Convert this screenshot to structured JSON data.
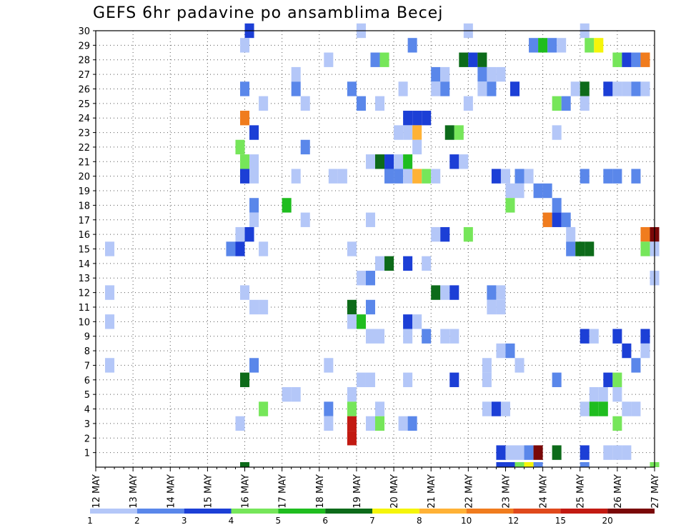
{
  "chart_data": {
    "type": "heatmap",
    "title": "GEFS 6hr padavine po ansamblima Becej",
    "xlabel": "",
    "ylabel": "",
    "x_tick_labels": [
      "12 MAY",
      "13 MAY",
      "14 MAY",
      "15 MAY",
      "16 MAY",
      "17 MAY",
      "18 MAY",
      "19 MAY",
      "20 MAY",
      "21 MAY",
      "22 MAY",
      "23 MAY",
      "24 MAY",
      "25 MAY",
      "26 MAY",
      "27 MAY"
    ],
    "y_tick_labels": [
      "1",
      "2",
      "3",
      "4",
      "5",
      "6",
      "7",
      "8",
      "9",
      "10",
      "11",
      "12",
      "13",
      "14",
      "15",
      "16",
      "17",
      "18",
      "19",
      "20",
      "21",
      "22",
      "23",
      "24",
      "25",
      "26",
      "27",
      "28",
      "29",
      "30"
    ],
    "x_range_days": [
      0,
      15
    ],
    "y_range": [
      0,
      30
    ],
    "grid": true,
    "colorbar": {
      "labels": [
        "1",
        "2",
        "3",
        "4",
        "5",
        "6",
        "7",
        "8",
        "10",
        "12",
        "15",
        "20"
      ],
      "colors": [
        "#b4c7f8",
        "#5a87ea",
        "#1c3fd6",
        "#76e65a",
        "#1fbd1f",
        "#0d6b1a",
        "#f5f50a",
        "#ffb236",
        "#f07c1e",
        "#e0491c",
        "#c21a12",
        "#7a0808"
      ]
    },
    "cells": [
      [
        4.125,
        30,
        2
      ],
      [
        7.125,
        30,
        0
      ],
      [
        10,
        30,
        0
      ],
      [
        13.125,
        30,
        0
      ],
      [
        4,
        29,
        0
      ],
      [
        8.5,
        29,
        1
      ],
      [
        11.75,
        29,
        1
      ],
      [
        12,
        29,
        4
      ],
      [
        12.25,
        29,
        1
      ],
      [
        12.5,
        29,
        0
      ],
      [
        13.25,
        29,
        3
      ],
      [
        13.5,
        29,
        6
      ],
      [
        6.25,
        28,
        0
      ],
      [
        7.5,
        28,
        1
      ],
      [
        7.75,
        28,
        3
      ],
      [
        9.875,
        28,
        5
      ],
      [
        10.125,
        28,
        2
      ],
      [
        10.375,
        28,
        5
      ],
      [
        14,
        28,
        3
      ],
      [
        14.25,
        28,
        2
      ],
      [
        14.5,
        28,
        1
      ],
      [
        14.75,
        28,
        8
      ],
      [
        5.375,
        27,
        0
      ],
      [
        9.125,
        27,
        1
      ],
      [
        9.375,
        27,
        0
      ],
      [
        10.375,
        27,
        1
      ],
      [
        10.625,
        27,
        0
      ],
      [
        10.875,
        27,
        0
      ],
      [
        4,
        26,
        1
      ],
      [
        5.375,
        26,
        1
      ],
      [
        6.875,
        26,
        1
      ],
      [
        8.25,
        26,
        0
      ],
      [
        9.125,
        26,
        0
      ],
      [
        9.375,
        26,
        1
      ],
      [
        10.375,
        26,
        0
      ],
      [
        10.625,
        26,
        1
      ],
      [
        11.25,
        26,
        2
      ],
      [
        12.875,
        26,
        0
      ],
      [
        13.125,
        26,
        5
      ],
      [
        13.75,
        26,
        2
      ],
      [
        14,
        26,
        0
      ],
      [
        14.25,
        26,
        0
      ],
      [
        14.5,
        26,
        1
      ],
      [
        14.75,
        26,
        0
      ],
      [
        4.5,
        25,
        0
      ],
      [
        5.625,
        25,
        0
      ],
      [
        7.125,
        25,
        1
      ],
      [
        7.625,
        25,
        0
      ],
      [
        10,
        25,
        0
      ],
      [
        12.375,
        25,
        3
      ],
      [
        12.625,
        25,
        1
      ],
      [
        13.125,
        25,
        0
      ],
      [
        4,
        24,
        8
      ],
      [
        8.375,
        24,
        2
      ],
      [
        8.625,
        24,
        2
      ],
      [
        8.875,
        24,
        2
      ],
      [
        4.25,
        23,
        2
      ],
      [
        8.125,
        23,
        0
      ],
      [
        8.375,
        23,
        0
      ],
      [
        8.625,
        23,
        7
      ],
      [
        9.5,
        23,
        5
      ],
      [
        9.75,
        23,
        3
      ],
      [
        12.375,
        23,
        0
      ],
      [
        3.875,
        22,
        3
      ],
      [
        5.625,
        22,
        1
      ],
      [
        8.625,
        22,
        0
      ],
      [
        4,
        21,
        3
      ],
      [
        4.25,
        21,
        0
      ],
      [
        7.375,
        21,
        0
      ],
      [
        7.625,
        21,
        5
      ],
      [
        7.875,
        21,
        2
      ],
      [
        8.125,
        21,
        0
      ],
      [
        8.375,
        21,
        4
      ],
      [
        9.625,
        21,
        2
      ],
      [
        9.875,
        21,
        0
      ],
      [
        4,
        20,
        2
      ],
      [
        4.25,
        20,
        0
      ],
      [
        5.375,
        20,
        0
      ],
      [
        6.375,
        20,
        0
      ],
      [
        6.625,
        20,
        0
      ],
      [
        7.875,
        20,
        1
      ],
      [
        8.125,
        20,
        1
      ],
      [
        8.375,
        20,
        0
      ],
      [
        8.625,
        20,
        7
      ],
      [
        8.875,
        20,
        3
      ],
      [
        9.125,
        20,
        0
      ],
      [
        10.75,
        20,
        2
      ],
      [
        11,
        20,
        0
      ],
      [
        11.375,
        20,
        1
      ],
      [
        11.625,
        20,
        0
      ],
      [
        13.125,
        20,
        1
      ],
      [
        13.75,
        20,
        1
      ],
      [
        14,
        20,
        1
      ],
      [
        14.5,
        20,
        1
      ],
      [
        11.125,
        19,
        0
      ],
      [
        11.375,
        19,
        0
      ],
      [
        11.875,
        19,
        1
      ],
      [
        12.125,
        19,
        1
      ],
      [
        11.125,
        18,
        3
      ],
      [
        4.25,
        18,
        1
      ],
      [
        5.125,
        18,
        4
      ],
      [
        12.375,
        18,
        1
      ],
      [
        4.25,
        17,
        0
      ],
      [
        5.625,
        17,
        0
      ],
      [
        7.375,
        17,
        0
      ],
      [
        12.125,
        17,
        8
      ],
      [
        12.375,
        17,
        2
      ],
      [
        12.625,
        17,
        1
      ],
      [
        3.875,
        16,
        0
      ],
      [
        4.125,
        16,
        2
      ],
      [
        9.125,
        16,
        0
      ],
      [
        9.375,
        16,
        2
      ],
      [
        10,
        16,
        3
      ],
      [
        12.75,
        16,
        0
      ],
      [
        14.75,
        16,
        8
      ],
      [
        15,
        16,
        11
      ],
      [
        0.375,
        15,
        0
      ],
      [
        3.625,
        15,
        1
      ],
      [
        3.875,
        15,
        2
      ],
      [
        4.5,
        15,
        0
      ],
      [
        6.875,
        15,
        0
      ],
      [
        12.75,
        15,
        1
      ],
      [
        13,
        15,
        5
      ],
      [
        13.25,
        15,
        5
      ],
      [
        14.75,
        15,
        3
      ],
      [
        15,
        15,
        0
      ],
      [
        7.625,
        14,
        0
      ],
      [
        7.875,
        14,
        5
      ],
      [
        8.375,
        14,
        2
      ],
      [
        8.875,
        14,
        0
      ],
      [
        7.125,
        13,
        0
      ],
      [
        7.375,
        13,
        1
      ],
      [
        15,
        13,
        0
      ],
      [
        0.375,
        12,
        0
      ],
      [
        4,
        12,
        0
      ],
      [
        9.125,
        12,
        5
      ],
      [
        9.375,
        12,
        0
      ],
      [
        9.625,
        12,
        2
      ],
      [
        10.625,
        12,
        1
      ],
      [
        10.875,
        12,
        0
      ],
      [
        4.25,
        11,
        0
      ],
      [
        4.5,
        11,
        0
      ],
      [
        6.875,
        11,
        5
      ],
      [
        7.375,
        11,
        1
      ],
      [
        10.625,
        11,
        0
      ],
      [
        10.875,
        11,
        0
      ],
      [
        0.375,
        10,
        0
      ],
      [
        6.875,
        10,
        0
      ],
      [
        7.125,
        10,
        4
      ],
      [
        8.375,
        10,
        2
      ],
      [
        8.625,
        10,
        0
      ],
      [
        7.375,
        9,
        0
      ],
      [
        7.625,
        9,
        0
      ],
      [
        8.375,
        9,
        0
      ],
      [
        8.875,
        9,
        1
      ],
      [
        9.375,
        9,
        0
      ],
      [
        9.625,
        9,
        0
      ],
      [
        13.125,
        9,
        2
      ],
      [
        13.375,
        9,
        0
      ],
      [
        14,
        9,
        2
      ],
      [
        14.75,
        9,
        2
      ],
      [
        10.875,
        8,
        0
      ],
      [
        11.125,
        8,
        1
      ],
      [
        14.25,
        8,
        2
      ],
      [
        14.75,
        8,
        0
      ],
      [
        0.375,
        7,
        0
      ],
      [
        4.25,
        7,
        1
      ],
      [
        6.25,
        7,
        0
      ],
      [
        10.5,
        7,
        0
      ],
      [
        11.375,
        7,
        0
      ],
      [
        14.5,
        7,
        1
      ],
      [
        4,
        6,
        5
      ],
      [
        7.125,
        6,
        0
      ],
      [
        7.375,
        6,
        0
      ],
      [
        8.375,
        6,
        0
      ],
      [
        9.625,
        6,
        2
      ],
      [
        10.5,
        6,
        0
      ],
      [
        12.375,
        6,
        1
      ],
      [
        13.75,
        6,
        2
      ],
      [
        14,
        6,
        3
      ],
      [
        5.125,
        5,
        0
      ],
      [
        5.375,
        5,
        0
      ],
      [
        6.875,
        5,
        0
      ],
      [
        13.375,
        5,
        0
      ],
      [
        13.625,
        5,
        0
      ],
      [
        14,
        5,
        0
      ],
      [
        4.5,
        4,
        3
      ],
      [
        6.25,
        4,
        1
      ],
      [
        6.875,
        4,
        3
      ],
      [
        7.625,
        4,
        0
      ],
      [
        10.5,
        4,
        0
      ],
      [
        10.75,
        4,
        2
      ],
      [
        11,
        4,
        0
      ],
      [
        13.125,
        4,
        0
      ],
      [
        13.375,
        4,
        4
      ],
      [
        13.625,
        4,
        4
      ],
      [
        14.25,
        4,
        0
      ],
      [
        14.5,
        4,
        0
      ],
      [
        3.875,
        3,
        0
      ],
      [
        6.25,
        3,
        0
      ],
      [
        6.875,
        3,
        10
      ],
      [
        7.375,
        3,
        0
      ],
      [
        7.625,
        3,
        3
      ],
      [
        8.25,
        3,
        0
      ],
      [
        8.5,
        3,
        1
      ],
      [
        14,
        3,
        3
      ],
      [
        6.875,
        2,
        10
      ],
      [
        10.875,
        1,
        2
      ],
      [
        11.125,
        1,
        0
      ],
      [
        11.375,
        1,
        0
      ],
      [
        11.625,
        1,
        1
      ],
      [
        11.875,
        1,
        11
      ],
      [
        12.375,
        1,
        5
      ],
      [
        13.125,
        1,
        2
      ],
      [
        13.75,
        1,
        0
      ],
      [
        14,
        1,
        0
      ],
      [
        14.25,
        1,
        0
      ],
      [
        10.875,
        0,
        2
      ],
      [
        11.125,
        0,
        2
      ],
      [
        11.375,
        0,
        3
      ],
      [
        11.625,
        0,
        6
      ],
      [
        11.875,
        0,
        1
      ],
      [
        4,
        0,
        5
      ],
      [
        13.125,
        0,
        1
      ],
      [
        15,
        0,
        3
      ]
    ]
  }
}
